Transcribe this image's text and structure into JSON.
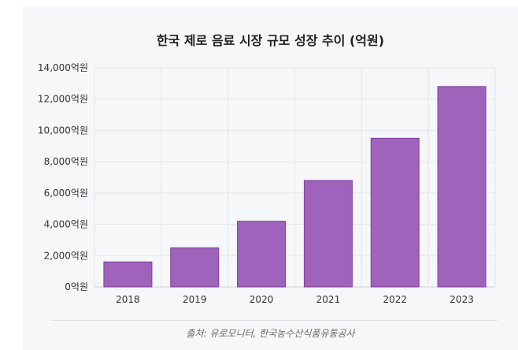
{
  "chart_data": {
    "type": "bar",
    "title": "한국 제로 음료 시장 규모 성장 추이 (억원)",
    "categories": [
      "2018",
      "2019",
      "2020",
      "2021",
      "2022",
      "2023"
    ],
    "values": [
      1600,
      2500,
      4200,
      6800,
      9500,
      12800
    ],
    "ylim": [
      0,
      14000
    ],
    "yticks": [
      "0억원",
      "2,000억원",
      "4,000억원",
      "6,000억원",
      "8,000억원",
      "10,000억원",
      "12,000억원",
      "14,000억원"
    ],
    "ytick_values": [
      0,
      2000,
      4000,
      6000,
      8000,
      10000,
      12000,
      14000
    ],
    "grid": true,
    "bar_color": "#9f63bb",
    "bar_border_color": "#7d3f9b"
  },
  "source_text": "출처: 유로모니터, 한국농수산식품유통공사"
}
